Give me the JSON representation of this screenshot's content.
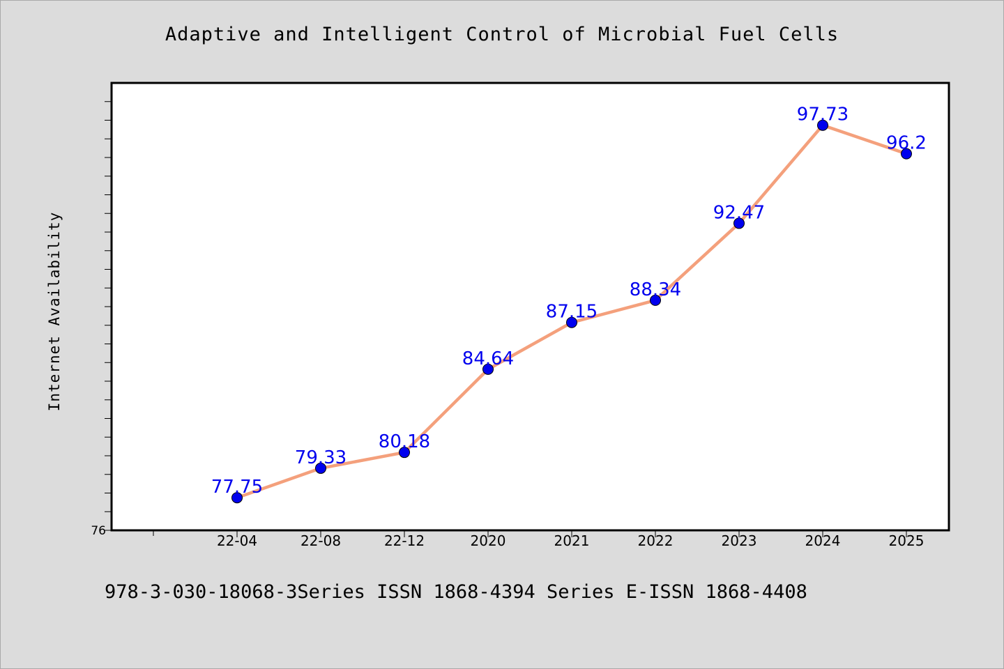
{
  "chart_data": {
    "type": "line",
    "title": "Adaptive and Intelligent Control of Microbial Fuel Cells",
    "xlabel": "",
    "ylabel": "Internet Availability",
    "categories": [
      "22-04",
      "22-08",
      "22-12",
      "2020",
      "2021",
      "2022",
      "2023",
      "2024",
      "2025"
    ],
    "series": [
      {
        "values": [
          77.75,
          79.33,
          80.18,
          84.64,
          87.15,
          88.34,
          92.47,
          97.73,
          96.2
        ],
        "labels": [
          "77.75",
          "79.33",
          "80.18",
          "84.64",
          "87.15",
          "88.34",
          "92.47",
          "97.73",
          "96.2"
        ]
      }
    ],
    "ylim": [
      76,
      100
    ],
    "ytick_labels": [
      "76"
    ],
    "grid": false,
    "legend": "none",
    "colors": {
      "line": "#f4a07c",
      "marker": "#0000ee",
      "data_label": "#0000ee",
      "plot_background": "#ffffff",
      "page_background": "#dcdcdc"
    }
  },
  "footer": {
    "text": "978-3-030-18068-3Series ISSN 1868-4394 Series E-ISSN 1868-4408"
  }
}
